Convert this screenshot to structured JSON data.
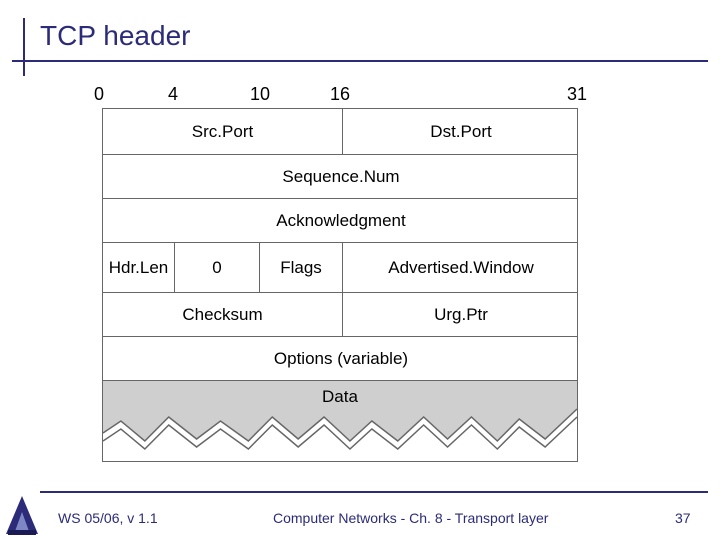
{
  "slide": {
    "title": "TCP header"
  },
  "bit_positions": [
    "0",
    "4",
    "10",
    "16",
    "31"
  ],
  "header": {
    "row1": {
      "src_port": "Src.Port",
      "dst_port": "Dst.Port"
    },
    "row2": {
      "sequence": "Sequence.Num"
    },
    "row3": {
      "ack": "Acknowledgment"
    },
    "row4": {
      "hdrlen": "Hdr.Len",
      "zero": "0",
      "flags": "Flags",
      "window": "Advertised.Window"
    },
    "row5": {
      "checksum": "Checksum",
      "urgptr": "Urg.Ptr"
    },
    "row6": {
      "options": "Options (variable)"
    },
    "data": "Data"
  },
  "footer": {
    "left": "WS 05/06, v 1.1",
    "center": "Computer Networks - Ch. 8 - Transport layer",
    "page": "37"
  },
  "colors": {
    "accent": "#2b2b7a",
    "data_fill": "#cfcfcf",
    "border": "#666666"
  }
}
